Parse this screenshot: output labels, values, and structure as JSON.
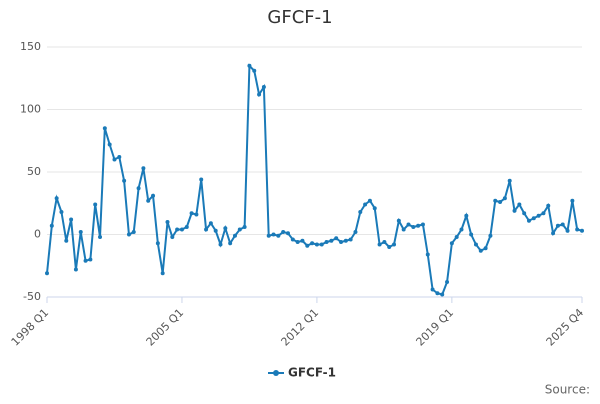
{
  "chart_data": {
    "type": "line",
    "title": "GFCF-1",
    "source": "Source:",
    "categories": [
      "1998 Q1",
      null,
      null,
      null,
      null,
      null,
      null,
      null,
      null,
      null,
      null,
      null,
      null,
      null,
      null,
      null,
      null,
      null,
      null,
      null,
      null,
      null,
      null,
      null,
      null,
      null,
      null,
      null,
      "2005 Q1",
      null,
      null,
      null,
      null,
      null,
      null,
      null,
      null,
      null,
      null,
      null,
      null,
      null,
      null,
      null,
      null,
      null,
      null,
      null,
      null,
      null,
      null,
      null,
      null,
      null,
      null,
      null,
      "2012 Q1",
      null,
      null,
      null,
      null,
      null,
      null,
      null,
      null,
      null,
      null,
      null,
      null,
      null,
      null,
      null,
      null,
      null,
      null,
      null,
      null,
      null,
      null,
      null,
      null,
      null,
      null,
      null,
      "2019 Q1",
      null,
      null,
      null,
      null,
      null,
      null,
      null,
      null,
      null,
      null,
      null,
      null,
      null,
      null,
      null,
      null,
      null,
      null,
      null,
      null,
      null,
      null,
      null,
      null,
      null,
      null,
      "2025 Q4"
    ],
    "series": [
      {
        "name": "GFCF-1",
        "color": "#1a7ab8",
        "values": [
          -31,
          7,
          29,
          18,
          -5,
          12,
          -28,
          2,
          -21,
          -20,
          24,
          -2,
          85,
          72,
          60,
          62,
          43,
          0,
          2,
          37,
          53,
          27,
          31,
          -7,
          -31,
          10,
          -2,
          4,
          4,
          6,
          17,
          16,
          44,
          4,
          9,
          3,
          -8,
          5,
          -7,
          -1,
          4,
          6,
          135,
          131,
          112,
          118,
          -1,
          0,
          -1,
          2,
          1,
          -4,
          -6,
          -5,
          -9,
          -7,
          -8,
          -8,
          -6,
          -5,
          -3,
          -6,
          -5,
          -4,
          2,
          18,
          24,
          27,
          21,
          -8,
          -6,
          -10,
          -8,
          11,
          4,
          8,
          6,
          7,
          8,
          -16,
          -44,
          -47,
          -48,
          -38,
          -7,
          -2,
          4,
          15,
          0,
          -8,
          -13,
          -11,
          -1,
          27,
          26,
          29,
          43,
          19,
          24,
          17,
          11,
          13,
          15,
          17,
          23,
          1,
          7,
          8,
          3,
          27,
          4,
          3
        ]
      }
    ],
    "ylim": [
      -50,
      150
    ],
    "yticks": [
      -50,
      0,
      50,
      100,
      150
    ],
    "grid": true,
    "legend": "bottom"
  }
}
